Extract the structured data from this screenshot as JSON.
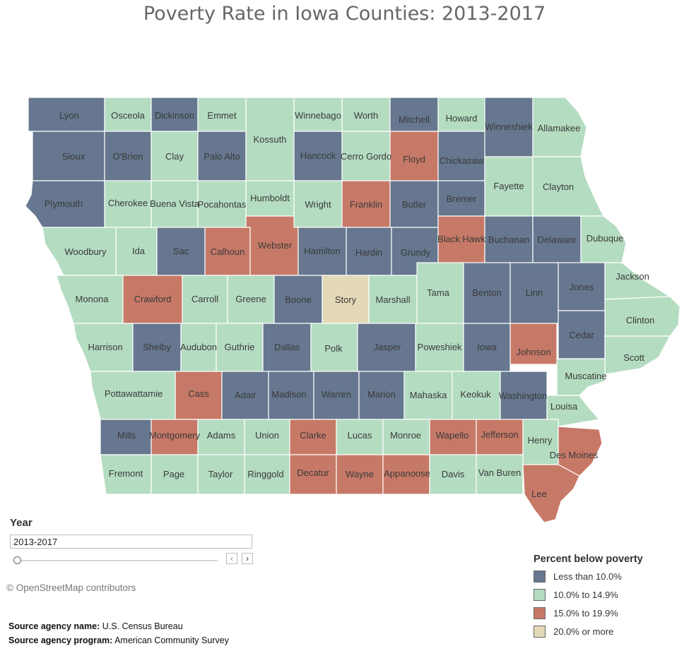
{
  "title": "Poverty Rate in Iowa Counties: 2013-2017",
  "colors": {
    "lt10": "#66778f",
    "10to15": "#b4dcc1",
    "15to20": "#c77967",
    "ge20": "#e3d9b6"
  },
  "counties": [
    {
      "name": "Lyon",
      "cat": "lt10"
    },
    {
      "name": "Osceola",
      "cat": "10to15"
    },
    {
      "name": "Dickinson",
      "cat": "lt10"
    },
    {
      "name": "Emmet",
      "cat": "10to15"
    },
    {
      "name": "Sioux",
      "cat": "lt10"
    },
    {
      "name": "O'Brien",
      "cat": "lt10"
    },
    {
      "name": "Clay",
      "cat": "10to15"
    },
    {
      "name": "Palo Alto",
      "cat": "lt10"
    },
    {
      "name": "Kossuth",
      "cat": "10to15"
    },
    {
      "name": "Winnebago",
      "cat": "10to15"
    },
    {
      "name": "Worth",
      "cat": "10to15"
    },
    {
      "name": "Mitchell",
      "cat": "lt10"
    },
    {
      "name": "Howard",
      "cat": "10to15"
    },
    {
      "name": "Winneshiek",
      "cat": "lt10"
    },
    {
      "name": "Allamakee",
      "cat": "10to15"
    },
    {
      "name": "Hancock",
      "cat": "lt10"
    },
    {
      "name": "Cerro Gordo",
      "cat": "10to15"
    },
    {
      "name": "Floyd",
      "cat": "15to20"
    },
    {
      "name": "Chickasaw",
      "cat": "lt10"
    },
    {
      "name": "Fayette",
      "cat": "10to15"
    },
    {
      "name": "Clayton",
      "cat": "10to15"
    },
    {
      "name": "Plymouth",
      "cat": "lt10"
    },
    {
      "name": "Cherokee",
      "cat": "10to15"
    },
    {
      "name": "Buena Vista",
      "cat": "10to15"
    },
    {
      "name": "Pocahontas",
      "cat": "10to15"
    },
    {
      "name": "Humboldt",
      "cat": "10to15"
    },
    {
      "name": "Wright",
      "cat": "10to15"
    },
    {
      "name": "Franklin",
      "cat": "15to20"
    },
    {
      "name": "Butler",
      "cat": "lt10"
    },
    {
      "name": "Bremer",
      "cat": "lt10"
    },
    {
      "name": "Woodbury",
      "cat": "10to15"
    },
    {
      "name": "Ida",
      "cat": "10to15"
    },
    {
      "name": "Sac",
      "cat": "lt10"
    },
    {
      "name": "Calhoun",
      "cat": "15to20"
    },
    {
      "name": "Webster",
      "cat": "15to20"
    },
    {
      "name": "Hamilton",
      "cat": "lt10"
    },
    {
      "name": "Hardin",
      "cat": "lt10"
    },
    {
      "name": "Grundy",
      "cat": "lt10"
    },
    {
      "name": "Black Hawk",
      "cat": "15to20"
    },
    {
      "name": "Buchanan",
      "cat": "lt10"
    },
    {
      "name": "Delaware",
      "cat": "lt10"
    },
    {
      "name": "Dubuque",
      "cat": "10to15"
    },
    {
      "name": "Monona",
      "cat": "10to15"
    },
    {
      "name": "Crawford",
      "cat": "15to20"
    },
    {
      "name": "Carroll",
      "cat": "10to15"
    },
    {
      "name": "Greene",
      "cat": "10to15"
    },
    {
      "name": "Boone",
      "cat": "lt10"
    },
    {
      "name": "Story",
      "cat": "ge20"
    },
    {
      "name": "Marshall",
      "cat": "10to15"
    },
    {
      "name": "Tama",
      "cat": "10to15"
    },
    {
      "name": "Benton",
      "cat": "lt10"
    },
    {
      "name": "Linn",
      "cat": "lt10"
    },
    {
      "name": "Jones",
      "cat": "lt10"
    },
    {
      "name": "Jackson",
      "cat": "10to15"
    },
    {
      "name": "Clinton",
      "cat": "10to15"
    },
    {
      "name": "Harrison",
      "cat": "10to15"
    },
    {
      "name": "Shelby",
      "cat": "lt10"
    },
    {
      "name": "Audubon",
      "cat": "10to15"
    },
    {
      "name": "Guthrie",
      "cat": "10to15"
    },
    {
      "name": "Dallas",
      "cat": "lt10"
    },
    {
      "name": "Polk",
      "cat": "10to15"
    },
    {
      "name": "Jasper",
      "cat": "lt10"
    },
    {
      "name": "Poweshiek",
      "cat": "10to15"
    },
    {
      "name": "Iowa",
      "cat": "lt10"
    },
    {
      "name": "Johnson",
      "cat": "15to20"
    },
    {
      "name": "Cedar",
      "cat": "lt10"
    },
    {
      "name": "Scott",
      "cat": "10to15"
    },
    {
      "name": "Muscatine",
      "cat": "10to15"
    },
    {
      "name": "Pottawattamie",
      "cat": "10to15"
    },
    {
      "name": "Cass",
      "cat": "15to20"
    },
    {
      "name": "Adair",
      "cat": "lt10"
    },
    {
      "name": "Madison",
      "cat": "lt10"
    },
    {
      "name": "Warren",
      "cat": "lt10"
    },
    {
      "name": "Marion",
      "cat": "lt10"
    },
    {
      "name": "Mahaska",
      "cat": "10to15"
    },
    {
      "name": "Keokuk",
      "cat": "10to15"
    },
    {
      "name": "Washington",
      "cat": "lt10"
    },
    {
      "name": "Louisa",
      "cat": "10to15"
    },
    {
      "name": "Mills",
      "cat": "lt10"
    },
    {
      "name": "Montgomery",
      "cat": "15to20"
    },
    {
      "name": "Adams",
      "cat": "10to15"
    },
    {
      "name": "Union",
      "cat": "10to15"
    },
    {
      "name": "Clarke",
      "cat": "15to20"
    },
    {
      "name": "Lucas",
      "cat": "10to15"
    },
    {
      "name": "Monroe",
      "cat": "10to15"
    },
    {
      "name": "Wapello",
      "cat": "15to20"
    },
    {
      "name": "Jefferson",
      "cat": "15to20"
    },
    {
      "name": "Henry",
      "cat": "10to15"
    },
    {
      "name": "Des Moines",
      "cat": "15to20"
    },
    {
      "name": "Fremont",
      "cat": "10to15"
    },
    {
      "name": "Page",
      "cat": "10to15"
    },
    {
      "name": "Taylor",
      "cat": "10to15"
    },
    {
      "name": "Ringgold",
      "cat": "10to15"
    },
    {
      "name": "Decatur",
      "cat": "15to20"
    },
    {
      "name": "Wayne",
      "cat": "15to20"
    },
    {
      "name": "Appanoose",
      "cat": "15to20"
    },
    {
      "name": "Davis",
      "cat": "10to15"
    },
    {
      "name": "Van Buren",
      "cat": "10to15"
    },
    {
      "name": "Lee",
      "cat": "15to20"
    }
  ],
  "year_filter": {
    "heading": "Year",
    "selected": "2013-2017",
    "prev": "‹",
    "next": "›"
  },
  "attribution": "© OpenStreetMap contributors",
  "source": {
    "agency_name_label": "Source agency name:",
    "agency_name": "U.S. Census Bureau",
    "agency_program_label": "Source agency program:",
    "agency_program": "American Community Survey"
  },
  "legend": {
    "title": "Percent below poverty",
    "items": [
      {
        "cat": "lt10",
        "label": "Less than 10.0%"
      },
      {
        "cat": "10to15",
        "label": "10.0% to 14.9%"
      },
      {
        "cat": "15to20",
        "label": "15.0% to 19.9%"
      },
      {
        "cat": "ge20",
        "label": "20.0% or more"
      }
    ]
  }
}
